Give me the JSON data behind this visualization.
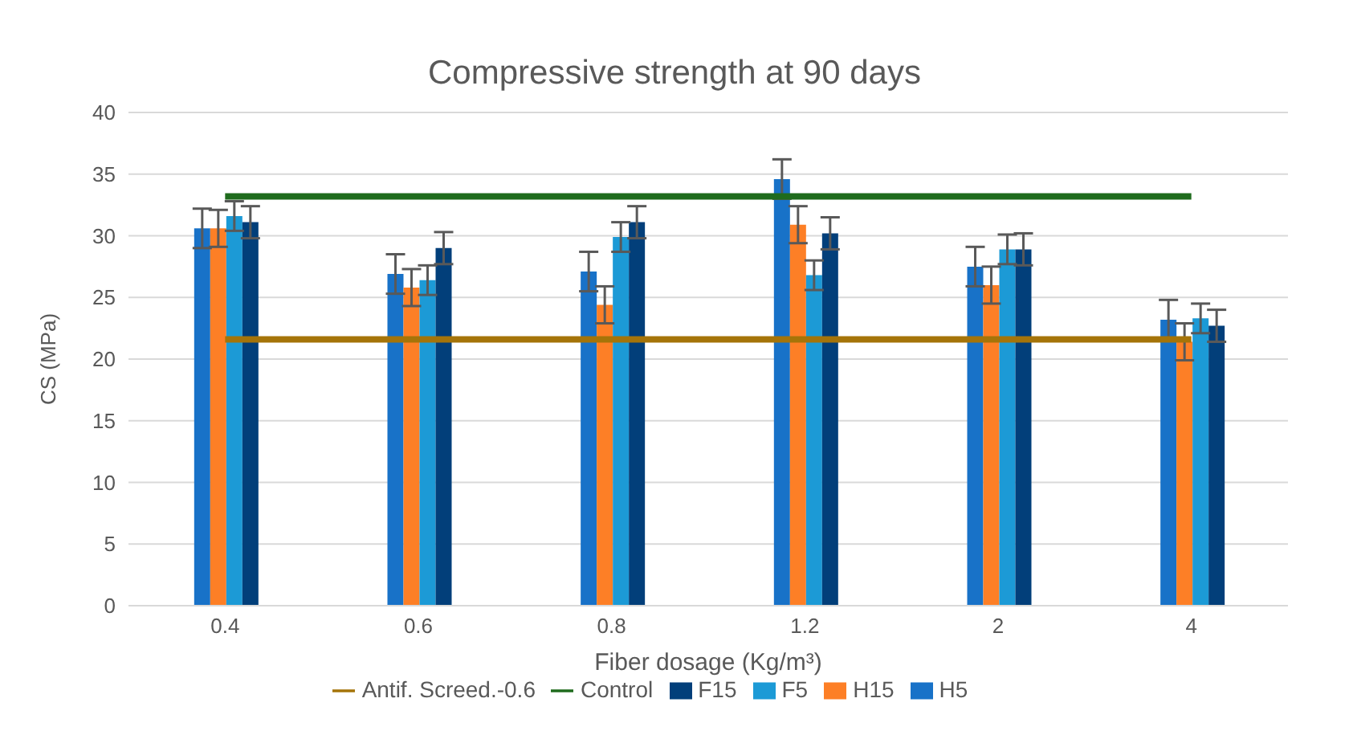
{
  "chart_data": {
    "type": "bar",
    "title": "Compressive strength at 90 days",
    "xlabel": "Fiber dosage (Kg/m³)",
    "ylabel": "CS (MPa)",
    "categories": [
      "0.4",
      "0.6",
      "0.8",
      "1.2",
      "2",
      "4"
    ],
    "series": [
      {
        "name": "H5",
        "color": "#1872c8",
        "values": [
          30.6,
          26.9,
          27.1,
          34.6,
          27.5,
          23.2
        ],
        "errors": [
          1.6,
          1.6,
          1.6,
          1.6,
          1.6,
          1.6
        ]
      },
      {
        "name": "H15",
        "color": "#fd7f26",
        "values": [
          30.6,
          25.8,
          24.4,
          30.9,
          26.0,
          21.4
        ],
        "errors": [
          1.5,
          1.5,
          1.5,
          1.5,
          1.5,
          1.5
        ]
      },
      {
        "name": "F5",
        "color": "#1c9ad6",
        "values": [
          31.6,
          26.4,
          29.9,
          26.8,
          28.9,
          23.3
        ],
        "errors": [
          1.2,
          1.2,
          1.2,
          1.2,
          1.2,
          1.2
        ]
      },
      {
        "name": "F15",
        "color": "#023f7a",
        "values": [
          31.1,
          29.0,
          31.1,
          30.2,
          28.9,
          22.7
        ],
        "errors": [
          1.3,
          1.3,
          1.3,
          1.3,
          1.3,
          1.3
        ]
      },
      {
        "name": "Antif. Screed.-0.6",
        "type": "line",
        "color": "#a57409",
        "values": [
          21.6,
          21.6,
          21.6,
          21.6,
          21.6,
          21.6
        ]
      },
      {
        "name": "Control",
        "type": "line",
        "color": "#1f6b1d",
        "values": [
          33.2,
          33.2,
          33.2,
          33.2,
          33.2,
          33.2
        ]
      }
    ],
    "ylim": [
      0,
      40
    ],
    "yticks": [
      0,
      5,
      10,
      15,
      20,
      25,
      30,
      35,
      40
    ],
    "grid": "y",
    "legend": "bottom",
    "marker": "none"
  }
}
